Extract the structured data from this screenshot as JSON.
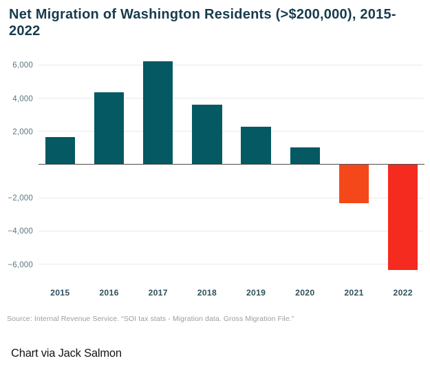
{
  "header": {
    "title": "Net Migration of Washington Residents (>$200,000), 2015-2022"
  },
  "chart_data": {
    "type": "bar",
    "title": "Net Migration of Washington Residents (>$200,000), 2015-2022",
    "categories": [
      "2015",
      "2016",
      "2017",
      "2018",
      "2019",
      "2020",
      "2021",
      "2022"
    ],
    "values": [
      1650,
      4320,
      6200,
      3580,
      2250,
      1000,
      -2360,
      -6380
    ],
    "bar_colors": [
      "#045962",
      "#045962",
      "#045962",
      "#045962",
      "#045962",
      "#045962",
      "#f4481a",
      "#f42b1e"
    ],
    "xlabel": "",
    "ylabel": "",
    "y_ticks": [
      {
        "value": 6000,
        "label": "6,000"
      },
      {
        "value": 4000,
        "label": "4,000"
      },
      {
        "value": 2000,
        "label": "2,000"
      },
      {
        "value": -2000,
        "label": "−2,000"
      },
      {
        "value": -4000,
        "label": "−4,000"
      },
      {
        "value": -6000,
        "label": "−6,000"
      }
    ],
    "ylim": [
      -6700,
      6600
    ],
    "grid": true,
    "legend": false
  },
  "colors": {
    "bar_positive": "#045962",
    "bar_negative_2021": "#f4481a",
    "bar_negative_2022": "#f42b1e",
    "gridline": "#e9e9e9",
    "zero_axis": "#4d4d4d",
    "title_text": "#173b4d",
    "y_tick_text": "#5b7680",
    "x_tick_text": "#2e4f5c",
    "source_text": "#9d9d9d",
    "footer_text": "#141414"
  },
  "source_note": "Source: Internal Revenue Service. “SOI tax stats - Migration data. Gross Migration File.”",
  "footer": {
    "credit": "Chart via Jack Salmon"
  }
}
